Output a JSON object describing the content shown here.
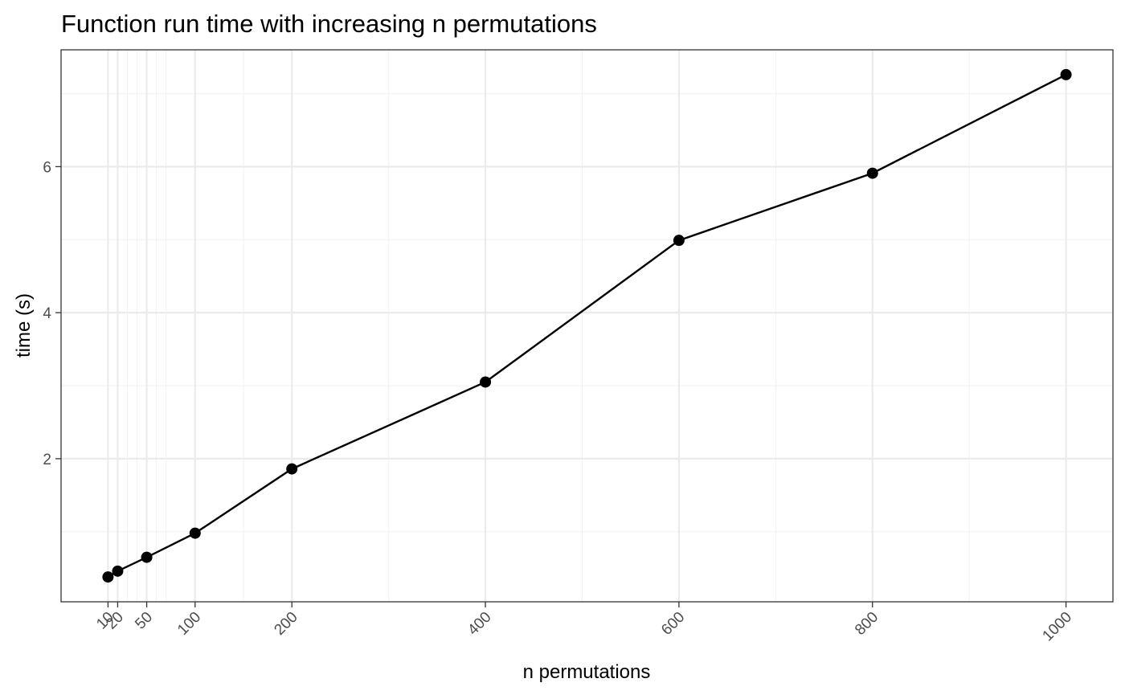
{
  "chart_data": {
    "type": "line",
    "title": "Function run time with increasing n permutations",
    "xlabel": "n permutations",
    "ylabel": "time (s)",
    "x": [
      10,
      20,
      50,
      100,
      200,
      400,
      600,
      800,
      1000
    ],
    "y": [
      0.38,
      0.46,
      0.65,
      0.98,
      1.86,
      3.05,
      4.99,
      5.91,
      7.26
    ],
    "x_ticks": [
      10,
      20,
      50,
      100,
      200,
      400,
      600,
      800,
      1000
    ],
    "x_tick_labels": [
      "10",
      "20",
      "50",
      "100",
      "200",
      "400",
      "600",
      "800",
      "1000"
    ],
    "x_minor_gridlines": [
      30,
      40,
      60,
      70,
      150,
      300,
      500,
      700,
      900
    ],
    "y_ticks": [
      2,
      4,
      6
    ],
    "y_tick_labels": [
      "2",
      "4",
      "6"
    ],
    "y_minor_gridlines": [
      1,
      3,
      5,
      7
    ],
    "xlim": [
      -38.5,
      1048.5
    ],
    "ylim": [
      0.04,
      7.6
    ],
    "grid": true,
    "legend": "none",
    "colors": {
      "line": "#000000",
      "point": "#000000",
      "grid_major": "#ebebeb",
      "grid_minor": "#f2f2f2",
      "border": "#333333",
      "tick_text": "#4d4d4d"
    }
  }
}
